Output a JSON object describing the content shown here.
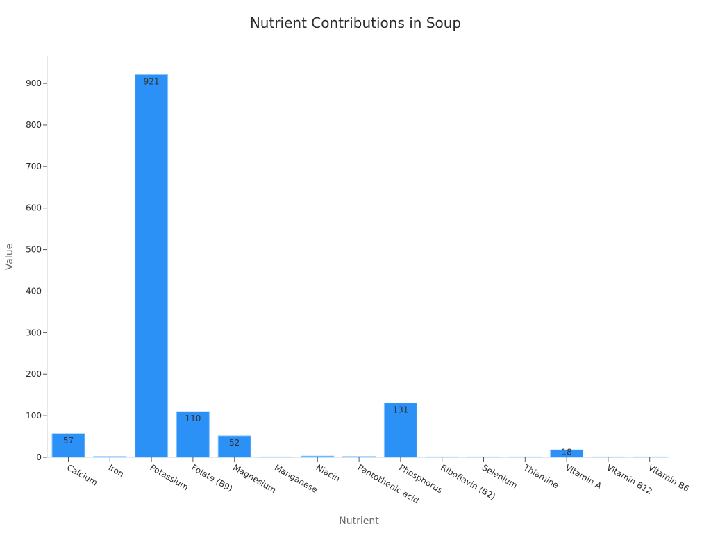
{
  "chart_data": {
    "type": "bar",
    "title": "Nutrient Contributions in Soup",
    "xlabel": "Nutrient",
    "ylabel": "Value",
    "ylim": [
      0,
      970
    ],
    "yticks": [
      0,
      100,
      200,
      300,
      400,
      500,
      600,
      700,
      800,
      900
    ],
    "grid": false,
    "categories": [
      "Calcium",
      "Iron",
      "Potassium",
      "Folate (B9)",
      "Magnesium",
      "Manganese",
      "Niacin",
      "Pantothenic acid",
      "Phosphorus",
      "Riboflavin (B2)",
      "Selenium",
      "Thiamine",
      "Vitamin A",
      "Vitamin B12",
      "Vitamin B6"
    ],
    "values": [
      57,
      2,
      921,
      110,
      52,
      0.5,
      3,
      2,
      131,
      0.3,
      1,
      0.2,
      18,
      0.1,
      0.4
    ],
    "data_labels": [
      "57",
      "",
      "921",
      "110",
      "52",
      "",
      "",
      "",
      "131",
      "",
      "",
      "",
      "18",
      "",
      ""
    ],
    "colors": {
      "bar": "#2b91f7",
      "bar_edge": "#8ec5fb"
    }
  }
}
